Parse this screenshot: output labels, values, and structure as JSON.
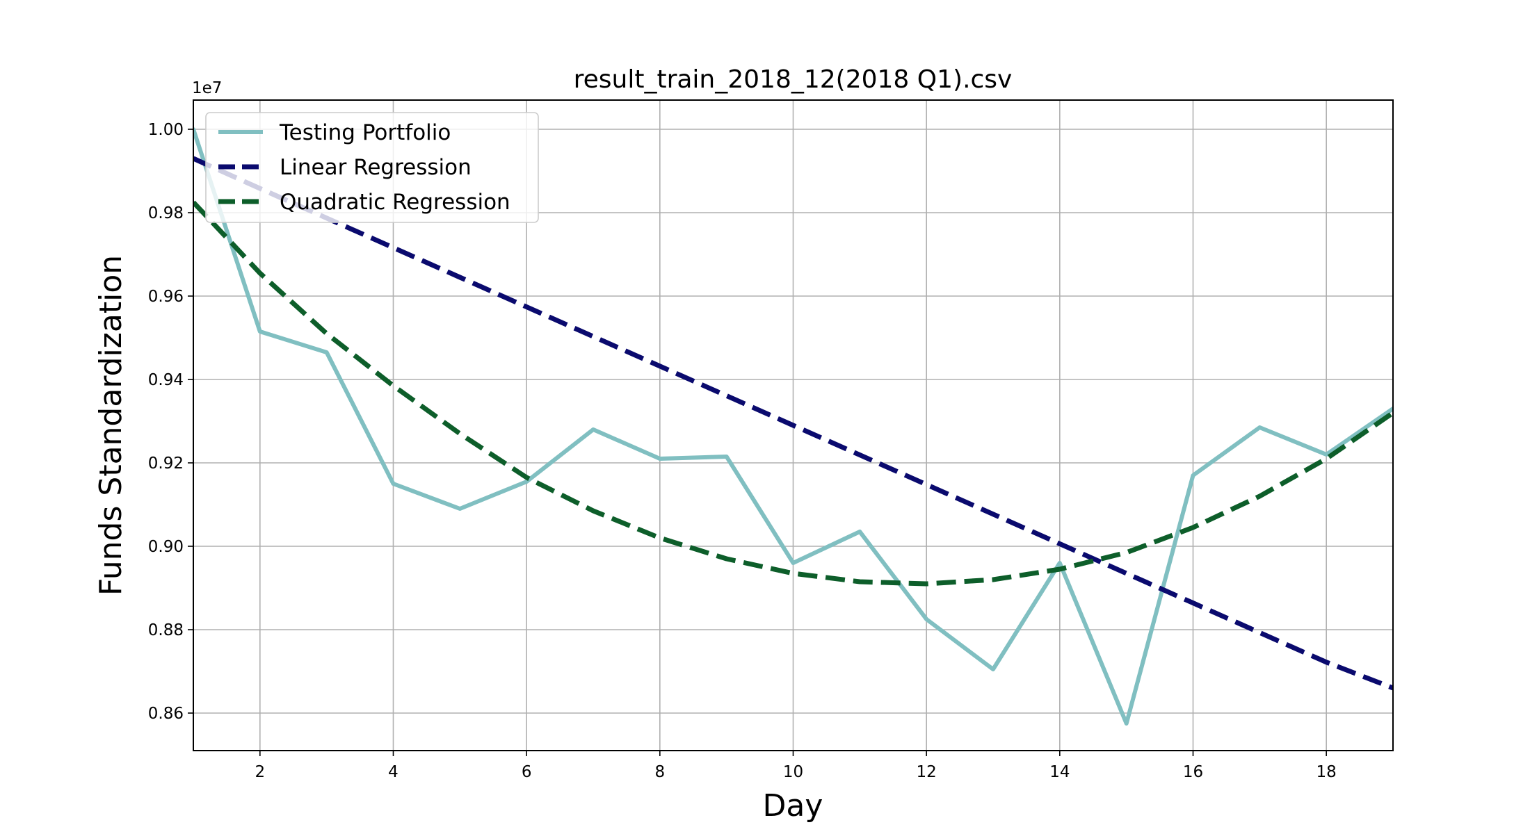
{
  "chart_data": {
    "type": "line",
    "title": "result_train_2018_12(2018 Q1).csv",
    "xlabel": "Day",
    "ylabel": "Funds Standardization",
    "y_offset_label": "1e7",
    "xlim": [
      1,
      19
    ],
    "ylim": [
      0.851,
      1.007
    ],
    "x_ticks": [
      2,
      4,
      6,
      8,
      10,
      12,
      14,
      16,
      18
    ],
    "x_tick_labels": [
      "2",
      "4",
      "6",
      "8",
      "10",
      "12",
      "14",
      "16",
      "18"
    ],
    "y_ticks": [
      0.86,
      0.88,
      0.9,
      0.92,
      0.94,
      0.96,
      0.98,
      1.0
    ],
    "y_tick_labels": [
      "0.86",
      "0.88",
      "0.90",
      "0.92",
      "0.94",
      "0.96",
      "0.98",
      "1.00"
    ],
    "grid": true,
    "legend_position": "top-left",
    "x": [
      1,
      2,
      3,
      4,
      5,
      6,
      7,
      8,
      9,
      10,
      11,
      12,
      13,
      14,
      15,
      16,
      17,
      18,
      19
    ],
    "series": [
      {
        "name": "Testing Portfolio",
        "style": "solid",
        "color": "#80bfc1",
        "values": [
          1.0,
          0.9515,
          0.9465,
          0.915,
          0.909,
          0.9155,
          0.928,
          0.921,
          0.9215,
          0.896,
          0.9035,
          0.8825,
          0.8705,
          0.896,
          0.8575,
          0.917,
          0.9285,
          0.922,
          0.933
        ]
      },
      {
        "name": "Linear Regression",
        "style": "dashed",
        "color": "#0a0a6e",
        "values": [
          0.993,
          0.9858,
          0.9787,
          0.9716,
          0.9645,
          0.9574,
          0.9503,
          0.9432,
          0.9361,
          0.929,
          0.9219,
          0.9148,
          0.9077,
          0.9006,
          0.8935,
          0.8864,
          0.8793,
          0.8722,
          0.866
        ]
      },
      {
        "name": "Quadratic Regression",
        "style": "dashed",
        "color": "#0d5e2a",
        "values": [
          0.9825,
          0.9655,
          0.951,
          0.9385,
          0.927,
          0.9165,
          0.9085,
          0.902,
          0.897,
          0.8935,
          0.8915,
          0.891,
          0.892,
          0.8945,
          0.8985,
          0.9045,
          0.912,
          0.921,
          0.932
        ]
      }
    ]
  }
}
